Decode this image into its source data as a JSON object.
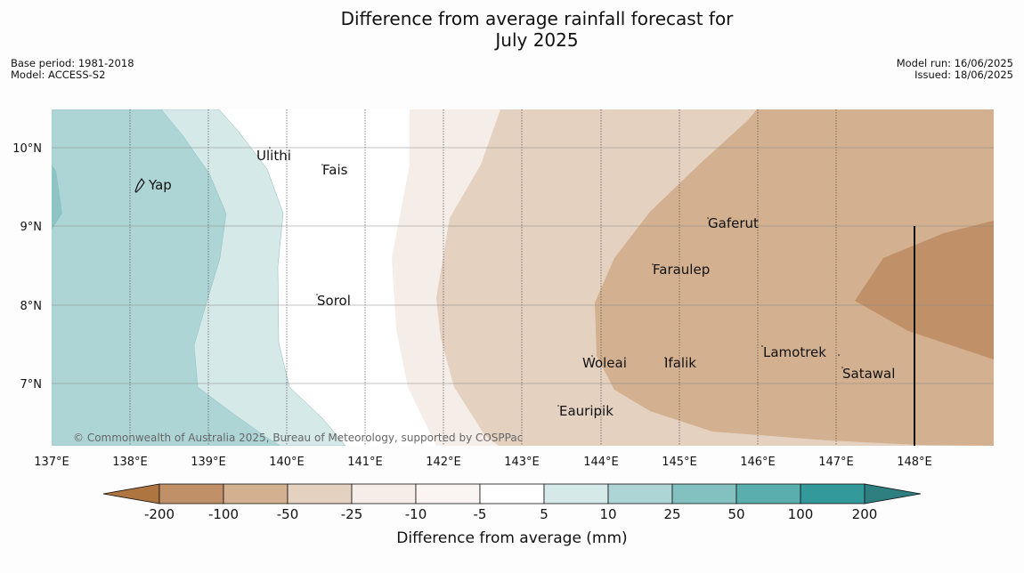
{
  "title_line1": "Difference from average rainfall forecast for",
  "title_line2": "July 2025",
  "meta_left": {
    "base_period": "Base period: 1981-2018",
    "model": "Model: ACCESS-S2"
  },
  "meta_right": {
    "model_run": "Model run: 16/06/2025",
    "issued": "Issued: 18/06/2025"
  },
  "copyright": "© Commonwealth of Australia 2025, Bureau of Meteorology, supported by COSPPac",
  "lon_ticks": [
    "137°E",
    "138°E",
    "139°E",
    "140°E",
    "141°E",
    "142°E",
    "143°E",
    "144°E",
    "145°E",
    "146°E",
    "147°E",
    "148°E"
  ],
  "lat_ticks": [
    "10°N",
    "9°N",
    "8°N",
    "7°N"
  ],
  "places": {
    "yap": "Yap",
    "ulithi": "Ulithi",
    "fais": "Fais",
    "sorol": "Sorol",
    "gaferut": "Gaferut",
    "faraulep": "Faraulep",
    "lamotrek": "Lamotrek",
    "satawal": "Satawal",
    "woleai": "Woleai",
    "ifalik": "Ifalik",
    "eauripik": "Eauripik"
  },
  "colorbar": {
    "label": "Difference from average (mm)",
    "ticks": [
      "-200",
      "-100",
      "-50",
      "-25",
      "-10",
      "-5",
      "5",
      "10",
      "25",
      "50",
      "100",
      "200"
    ],
    "colors": [
      "#ae7540",
      "#c09068",
      "#d3b08f",
      "#e4d1c0",
      "#f5ede8",
      "#ffffff",
      "#d5e9e9",
      "#aed5d6",
      "#83c1c1",
      "#5baeae",
      "#34999a",
      "#2e7f80"
    ]
  }
}
